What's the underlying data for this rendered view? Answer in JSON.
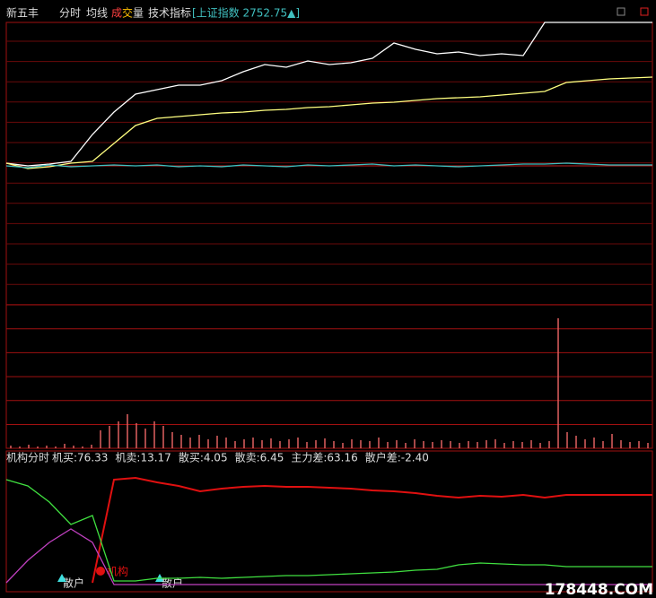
{
  "header": {
    "stock": "新五丰",
    "menu": [
      "分时",
      "均线"
    ],
    "volume_chars": [
      "成",
      "交",
      "量"
    ],
    "tech": "技术指标",
    "index": "[上证指数 2752.75▲]"
  },
  "indicator": {
    "name": "机构分时",
    "items": [
      "机买:76.33",
      "机卖:13.17",
      "散买:4.05",
      "散卖:6.45",
      "主力差:63.16",
      "散户差:-2.40"
    ],
    "markers": [
      "散户",
      "机构",
      "散户"
    ]
  },
  "watermark": "178448.COM",
  "chart_data": [
    {
      "type": "line",
      "ylim": [
        0,
        315
      ],
      "series": [
        {
          "color": "#ffffff",
          "values": [
            158,
            155,
            157,
            160,
            190,
            215,
            235,
            240,
            245,
            245,
            250,
            260,
            268,
            265,
            272,
            268,
            270,
            275,
            292,
            285,
            280,
            282,
            278,
            280,
            278,
            315,
            315,
            315,
            315,
            315,
            315
          ]
        },
        {
          "color": "#ffff80",
          "values": [
            158,
            152,
            154,
            158,
            160,
            180,
            200,
            208,
            210,
            212,
            214,
            215,
            217,
            218,
            220,
            221,
            223,
            225,
            226,
            228,
            230,
            231,
            232,
            234,
            236,
            238,
            248,
            250,
            252,
            253,
            254
          ]
        },
        {
          "color": "#40c0c0",
          "values": [
            155,
            153,
            156,
            154,
            155,
            156,
            155,
            156,
            154,
            155,
            154,
            156,
            155,
            154,
            156,
            155,
            156,
            157,
            155,
            156,
            155,
            154,
            155,
            156,
            157,
            157,
            158,
            157,
            156,
            156,
            156
          ]
        }
      ]
    },
    {
      "type": "bar",
      "ylim": [
        0,
        160
      ],
      "color": "#e06060",
      "values": [
        3,
        2,
        4,
        2,
        3,
        2,
        5,
        3,
        2,
        4,
        20,
        25,
        30,
        38,
        28,
        22,
        30,
        25,
        18,
        15,
        12,
        15,
        10,
        14,
        12,
        8,
        10,
        12,
        9,
        11,
        8,
        10,
        12,
        7,
        9,
        11,
        8,
        6,
        10,
        9,
        8,
        12,
        7,
        9,
        6,
        10,
        8,
        7,
        9,
        8,
        6,
        8,
        7,
        9,
        10,
        6,
        8,
        7,
        9,
        6,
        8,
        145,
        18,
        14,
        10,
        12,
        8,
        16,
        9,
        7,
        8,
        6
      ]
    },
    {
      "type": "line",
      "ylim": [
        0,
        140
      ],
      "series": [
        {
          "color": "#e01010",
          "values": [
            null,
            null,
            null,
            null,
            10,
            125,
            127,
            122,
            118,
            112,
            115,
            117,
            118,
            117,
            117,
            116,
            115,
            113,
            112,
            110,
            107,
            105,
            107,
            106,
            108,
            105,
            108,
            108,
            108,
            108,
            108
          ]
        },
        {
          "color": "#40e040",
          "values": [
            125,
            118,
            100,
            75,
            85,
            12,
            12,
            15,
            15,
            16,
            15,
            16,
            17,
            18,
            18,
            19,
            20,
            21,
            22,
            24,
            25,
            30,
            32,
            31,
            30,
            30,
            28,
            28,
            28,
            28,
            28
          ]
        },
        {
          "color": "#c040c0",
          "values": [
            10,
            35,
            55,
            70,
            55,
            8,
            8,
            8,
            8,
            8,
            8,
            8,
            8,
            8,
            8,
            8,
            8,
            8,
            8,
            8,
            8,
            8,
            8,
            8,
            8,
            8,
            8,
            8,
            8,
            8,
            8
          ]
        }
      ]
    }
  ]
}
